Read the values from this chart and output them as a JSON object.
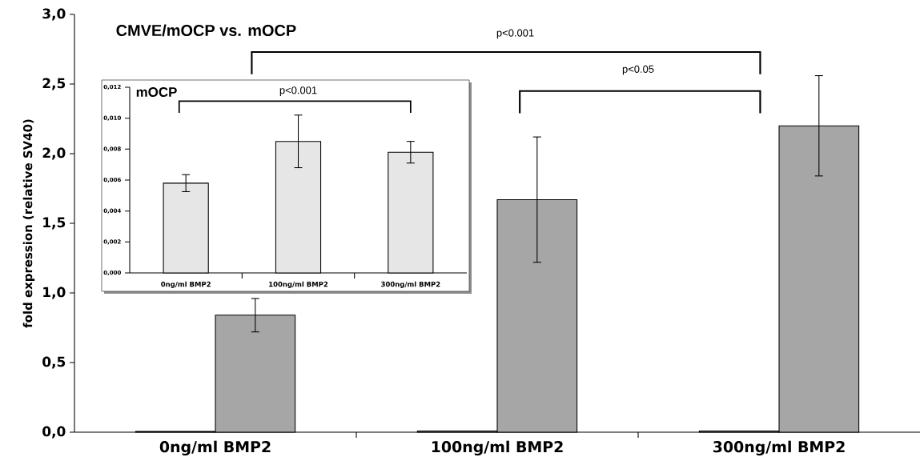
{
  "chart_data": [
    {
      "type": "bar",
      "title": "CMVE/mOCP vs. mOCP",
      "ylabel": "fold expression (relative SV40)",
      "categories": [
        "0ng/ml BMP2",
        "100ng/ml BMP2",
        "300ng/ml BMP2"
      ],
      "series": [
        {
          "color": "#f2f2f2",
          "values": [
            0.006,
            0.008,
            0.008
          ]
        },
        {
          "color": "#a6a6a6",
          "values": [
            0.84,
            1.67,
            2.2
          ],
          "errors": [
            0.12,
            0.45,
            0.36
          ]
        }
      ],
      "ylim": [
        0,
        3
      ],
      "yticks": [
        {
          "value": 0,
          "label": "0,0"
        },
        {
          "value": 0.5,
          "label": "0,5"
        },
        {
          "value": 1,
          "label": "1,0"
        },
        {
          "value": 1.5,
          "label": "1,5"
        },
        {
          "value": 2,
          "label": "2,0"
        },
        {
          "value": 2.5,
          "label": "2,5"
        },
        {
          "value": 3,
          "label": "3,0"
        }
      ],
      "annotations": [
        "p<0.001",
        "p<0.05"
      ]
    },
    {
      "type": "bar",
      "title": "mOCP",
      "categories": [
        "0ng/ml BMP2",
        "100ng/ml BMP2",
        "300ng/ml BMP2"
      ],
      "series": [
        {
          "color": "#e6e6e6",
          "values": [
            0.0058,
            0.0085,
            0.0078
          ],
          "errors": [
            0.00055,
            0.0017,
            0.0007
          ]
        }
      ],
      "ylim": [
        0,
        0.012
      ],
      "yticks": [
        {
          "value": 0,
          "label": "0,000"
        },
        {
          "value": 0.002,
          "label": "0,002"
        },
        {
          "value": 0.004,
          "label": "0,004"
        },
        {
          "value": 0.006,
          "label": "0,006"
        },
        {
          "value": 0.008,
          "label": "0,008"
        },
        {
          "value": 0.01,
          "label": "0,010"
        },
        {
          "value": 0.012,
          "label": "0,012"
        }
      ],
      "annotations": [
        "p<0.001"
      ]
    }
  ]
}
